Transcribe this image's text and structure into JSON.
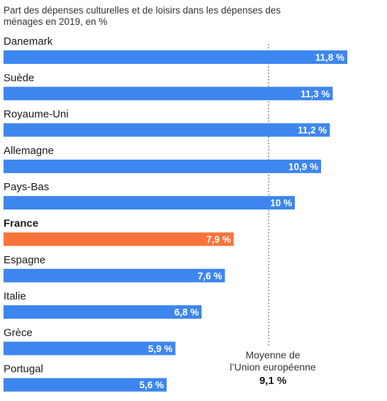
{
  "chart_data": {
    "type": "bar",
    "orientation": "horizontal",
    "title": "Part des dépenses culturelles et de loisirs dans les dépenses des ménages en 2019, en %",
    "categories": [
      "Danemark",
      "Suède",
      "Royaume-Uni",
      "Allemagne",
      "Pays-Bas",
      "France",
      "Espagne",
      "Italie",
      "Grèce",
      "Portugal"
    ],
    "values": [
      11.8,
      11.3,
      11.2,
      10.9,
      10,
      7.9,
      7.6,
      6.8,
      5.9,
      5.6
    ],
    "value_labels": [
      "11,8 %",
      "11,3 %",
      "11,2 %",
      "10,9 %",
      "10 %",
      "7,9 %",
      "7,6 %",
      "6,8 %",
      "5,9 %",
      "5,6 %"
    ],
    "highlight": "France",
    "colors": {
      "bar": "#3d86f0",
      "highlight": "#fa733a",
      "reference_line": "#555555"
    },
    "xlim": [
      0,
      13
    ],
    "grid": false,
    "reference_line": {
      "value": 9.1,
      "label_line1": "Moyenne de",
      "label_line2": "l’Union européenne",
      "value_label": "9,1 %"
    }
  }
}
